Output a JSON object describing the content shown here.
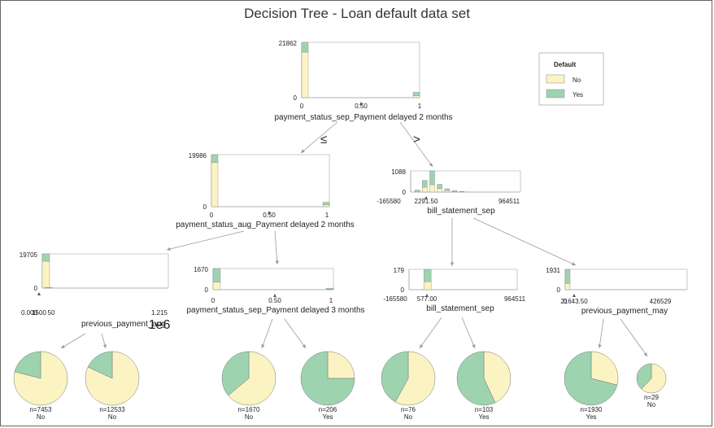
{
  "title": "Decision Tree - Loan default data set",
  "legend": {
    "title": "Default",
    "items": [
      {
        "label": "No",
        "color": "#fbf3c2"
      },
      {
        "label": "Yes",
        "color": "#9ed3b0"
      }
    ]
  },
  "colors": {
    "no": "#fbf3c2",
    "yes": "#9ed3b0",
    "edge": "#999999"
  },
  "edge_labels": {
    "left": "≤",
    "right": ">"
  },
  "nodes": [
    {
      "id": "root",
      "feature": "payment_status_sep_Payment delayed 2 months",
      "ymax": "21862",
      "ymin": "0",
      "xticks": [
        "0",
        "0.50",
        "1"
      ],
      "threshold": 0.5,
      "bins": [
        {
          "x": 0,
          "no": 18000,
          "yes": 3862
        },
        {
          "x": 1,
          "no": 800,
          "yes": 1300
        }
      ],
      "xrange": [
        0,
        1
      ]
    },
    {
      "id": "n_left",
      "feature": "payment_status_aug_Payment delayed 2 months",
      "ymax": "19986",
      "ymin": "0",
      "xticks": [
        "0",
        "0.50",
        "1"
      ],
      "threshold": 0.5,
      "bins": [
        {
          "x": 0,
          "no": 17000,
          "yes": 2986
        },
        {
          "x": 1,
          "no": 700,
          "yes": 1000
        }
      ],
      "xrange": [
        0,
        1
      ]
    },
    {
      "id": "n_right",
      "feature": "bill_statement_sep",
      "ymax": "1088",
      "ymin": "0",
      "xticks": [
        "-165580",
        "2291.50",
        "964511"
      ],
      "threshold": 2291.5,
      "bins": [
        {
          "x": -120000,
          "no": 40,
          "yes": 60
        },
        {
          "x": -40000,
          "no": 250,
          "yes": 350
        },
        {
          "x": 40000,
          "no": 380,
          "yes": 708
        },
        {
          "x": 120000,
          "no": 180,
          "yes": 220
        },
        {
          "x": 200000,
          "no": 80,
          "yes": 90
        },
        {
          "x": 280000,
          "no": 30,
          "yes": 40
        },
        {
          "x": 360000,
          "no": 12,
          "yes": 15
        }
      ],
      "xrange": [
        -165580,
        964511
      ]
    },
    {
      "id": "n_ll",
      "feature": "previous_payment_aug",
      "ymax": "19705",
      "ymin": "0",
      "xticks": [
        "0.000",
        "1500",
        "50",
        "1.215"
      ],
      "exponent": "1e6",
      "threshold": 1500,
      "bins": [
        {
          "x": 0,
          "no": 15500,
          "yes": 4205
        },
        {
          "x": 25000,
          "no": 300,
          "yes": 100
        }
      ],
      "xrange": [
        0,
        1215000
      ]
    },
    {
      "id": "n_lr",
      "feature": "payment_status_sep_Payment delayed 3 months",
      "ymax": "1670",
      "ymin": "0",
      "xticks": [
        "0",
        "0.50",
        "1"
      ],
      "threshold": 0.5,
      "bins": [
        {
          "x": 0,
          "no": 600,
          "yes": 1070
        },
        {
          "x": 1,
          "no": 40,
          "yes": 80
        }
      ],
      "xrange": [
        0,
        1
      ]
    },
    {
      "id": "n_rl",
      "feature": "bill_statement_sep",
      "ymax": "179",
      "ymin": "0",
      "xticks": [
        "-165580",
        "577.00",
        "964511"
      ],
      "threshold": 577,
      "bins": [
        {
          "x": 0,
          "no": 70,
          "yes": 109
        }
      ],
      "xrange": [
        -165580,
        964511
      ]
    },
    {
      "id": "n_rr",
      "feature": "previous_payment_may",
      "ymax": "1931",
      "ymin": "0",
      "xticks": [
        "0",
        "21643.50",
        "426529"
      ],
      "threshold": 21643.5,
      "bins": [
        {
          "x": 0,
          "no": 600,
          "yes": 1331
        }
      ],
      "xrange": [
        0,
        426529
      ]
    }
  ],
  "leaves": [
    {
      "n": "n=7453",
      "label": "No",
      "no_frac": 0.79
    },
    {
      "n": "n=12533",
      "label": "No",
      "no_frac": 0.82
    },
    {
      "n": "n=1670",
      "label": "No",
      "no_frac": 0.64
    },
    {
      "n": "n=206",
      "label": "Yes",
      "no_frac": 0.25
    },
    {
      "n": "n=76",
      "label": "No",
      "no_frac": 0.58
    },
    {
      "n": "n=103",
      "label": "Yes",
      "no_frac": 0.43
    },
    {
      "n": "n=1930",
      "label": "Yes",
      "no_frac": 0.29
    },
    {
      "n": "n=29",
      "label": "No",
      "no_frac": 0.62
    }
  ]
}
